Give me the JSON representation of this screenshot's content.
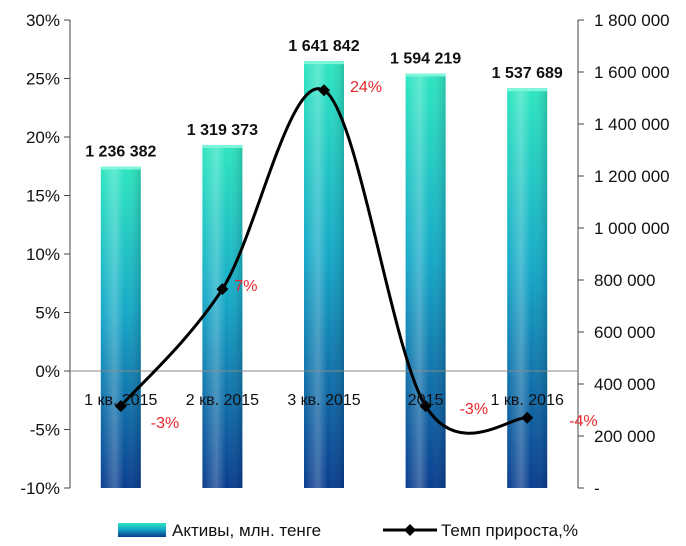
{
  "chart_data": {
    "type": "bar",
    "categories": [
      "1 кв. 2015",
      "2 кв. 2015",
      "3 кв. 2015",
      "2015",
      "1 кв. 2016"
    ],
    "series": [
      {
        "name": "Активы, млн. тенге",
        "type": "bar",
        "axis": "right",
        "values": [
          1236382,
          1319373,
          1641842,
          1594219,
          1537689
        ],
        "labels": [
          "1 236 382",
          "1 319 373",
          "1 641 842",
          "1 594 219",
          "1 537 689"
        ],
        "color": "#1aa8b8"
      },
      {
        "name": "Темп прироста,%",
        "type": "line",
        "axis": "left",
        "values": [
          -3,
          7,
          24,
          -3,
          -4
        ],
        "labels": [
          "-3%",
          "7%",
          "24%",
          "-3%",
          "-4%"
        ],
        "color": "#000000"
      }
    ],
    "y_left": {
      "range": [
        -10,
        30
      ],
      "ticks": [
        -10,
        -5,
        0,
        5,
        10,
        15,
        20,
        25,
        30
      ],
      "tick_labels": [
        "-10%",
        "-5%",
        "0%",
        "5%",
        "10%",
        "15%",
        "20%",
        "25%",
        "30%"
      ]
    },
    "y_right": {
      "range": [
        0,
        1800000
      ],
      "ticks": [
        0,
        200000,
        400000,
        600000,
        800000,
        1000000,
        1200000,
        1400000,
        1600000,
        1800000
      ],
      "tick_labels": [
        "-",
        "200 000",
        "400 000",
        "600 000",
        "800 000",
        "1 000 000",
        "1 200 000",
        "1 400 000",
        "1 600 000",
        "1 800 000"
      ]
    },
    "grid": false,
    "legend_position": "bottom",
    "colors": {
      "bar_top": "#2ee6c0",
      "bar_mid": "#16a9c8",
      "bar_bottom": "#0a3d8f",
      "label_red": "#e8262b"
    }
  }
}
